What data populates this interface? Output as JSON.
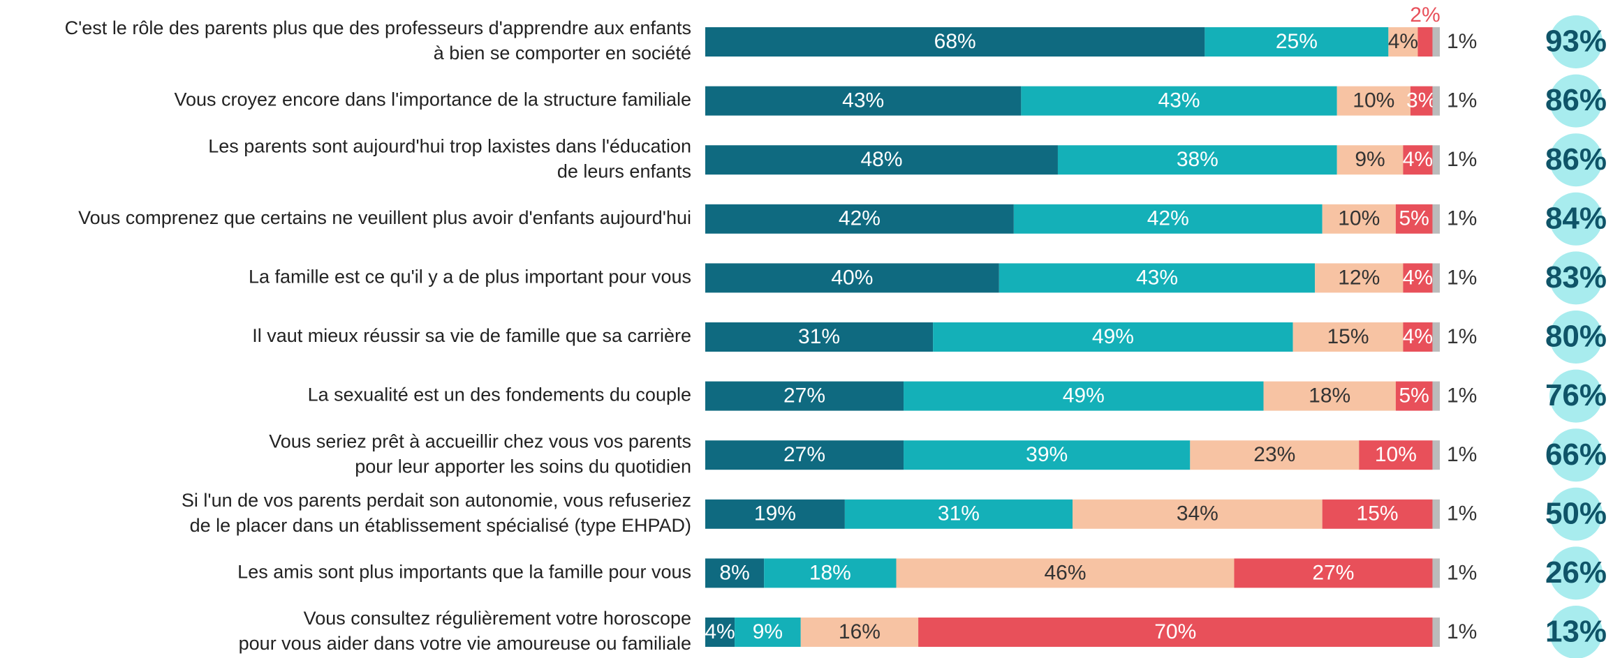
{
  "chart_data": {
    "type": "stacked-bar-horizontal",
    "categories": [
      [
        "C'est le rôle des parents plus que des professeurs d'apprendre aux enfants",
        "à bien se comporter en société"
      ],
      [
        "Vous croyez encore dans l'importance de la structure familiale"
      ],
      [
        "Les parents sont aujourd'hui trop laxistes dans l'éducation",
        "de leurs enfants"
      ],
      [
        "Vous comprenez que certains ne veuillent plus avoir d'enfants aujourd'hui"
      ],
      [
        "La famille est ce qu'il y a de plus important pour vous"
      ],
      [
        "Il vaut mieux réussir sa vie de famille que sa carrière"
      ],
      [
        "La sexualité est un des fondements du couple"
      ],
      [
        "Vous seriez prêt à accueillir chez vous vos parents",
        "pour leur apporter les soins du quotidien"
      ],
      [
        "Si l'un de vos parents perdait son autonomie, vous refuseriez",
        "de le placer dans un établissement spécialisé (type EHPAD)"
      ],
      [
        "Les amis sont plus importants que la famille pour vous"
      ],
      [
        "Vous consultez régulièrement votre horoscope",
        "pour vous aider dans votre vie amoureuse ou familiale"
      ]
    ],
    "xlim": [
      0,
      100
    ],
    "series": [
      {
        "color": "#0f6a80",
        "label_color": "#ffffff",
        "values": [
          68,
          43,
          48,
          42,
          40,
          31,
          27,
          27,
          19,
          8,
          4
        ],
        "value_labels": [
          "68%",
          "43%",
          "48%",
          "42%",
          "40%",
          "31%",
          "27%",
          "27%",
          "19%",
          "8%",
          "4%"
        ]
      },
      {
        "color": "#14b0b8",
        "label_color": "#ffffff",
        "values": [
          25,
          43,
          38,
          42,
          43,
          49,
          49,
          39,
          31,
          18,
          9
        ],
        "value_labels": [
          "25%",
          "43%",
          "38%",
          "42%",
          "43%",
          "49%",
          "49%",
          "39%",
          "31%",
          "18%",
          "9%"
        ]
      },
      {
        "color": "#f7c3a3",
        "label_color": "#333333",
        "values": [
          4,
          10,
          9,
          10,
          12,
          15,
          18,
          23,
          34,
          46,
          16
        ],
        "value_labels": [
          "4%",
          "10%",
          "9%",
          "10%",
          "12%",
          "15%",
          "18%",
          "23%",
          "34%",
          "46%",
          "16%"
        ]
      },
      {
        "color": "#e8505a",
        "label_color": "#ffffff",
        "values": [
          2,
          3,
          4,
          5,
          4,
          4,
          5,
          10,
          15,
          27,
          70
        ],
        "value_labels": [
          "2%",
          "3%",
          "4%",
          "5%",
          "4%",
          "4%",
          "5%",
          "10%",
          "15%",
          "27%",
          "70%"
        ]
      },
      {
        "color": "#bbbbbb",
        "label_color": "#333333",
        "values": [
          1,
          1,
          1,
          1,
          1,
          1,
          1,
          1,
          1,
          1,
          1
        ],
        "value_labels": [
          "1%",
          "1%",
          "1%",
          "1%",
          "1%",
          "1%",
          "1%",
          "1%",
          "1%",
          "1%",
          "1%"
        ]
      }
    ],
    "totals": {
      "values": [
        93,
        86,
        86,
        84,
        83,
        80,
        76,
        66,
        50,
        26,
        13
      ],
      "value_labels": [
        "93%",
        "86%",
        "86%",
        "84%",
        "83%",
        "80%",
        "76%",
        "66%",
        "50%",
        "26%",
        "13%"
      ],
      "color": "#0f5468",
      "circle_color": "#a8ecee"
    }
  }
}
